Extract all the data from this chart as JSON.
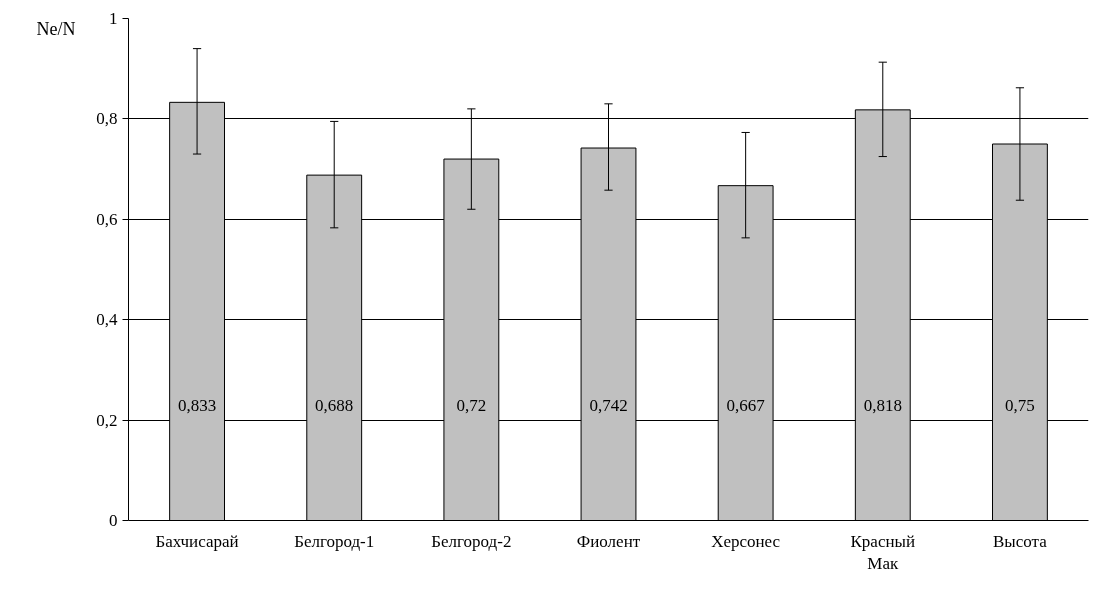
{
  "chart_data": {
    "type": "bar",
    "ylabel": "Ne/N",
    "categories": [
      "Бахчисарай",
      "Белгород-1",
      "Белгород-2",
      "Фиолент",
      "Херсонес",
      "Красный Мак",
      "Высота"
    ],
    "values": [
      0.833,
      0.688,
      0.72,
      0.742,
      0.667,
      0.818,
      0.75
    ],
    "value_labels": [
      "0,833",
      "0,688",
      "0,72",
      "0,742",
      "0,667",
      "0,818",
      "0,75"
    ],
    "errors": [
      [
        0.73,
        0.94
      ],
      [
        0.583,
        0.795
      ],
      [
        0.62,
        0.82
      ],
      [
        0.658,
        0.83
      ],
      [
        0.563,
        0.773
      ],
      [
        0.725,
        0.913
      ],
      [
        0.638,
        0.862
      ]
    ],
    "color": "#c0c0c0",
    "ylim": [
      0,
      1
    ],
    "yticks": [
      0,
      {
        "value": 0.2,
        "label": "0,2"
      },
      {
        "value": 0.4,
        "label": "0,4"
      },
      {
        "value": 0.6,
        "label": "0,6"
      },
      {
        "value": 0.8,
        "label": "0,8"
      },
      1
    ],
    "grid": "y"
  }
}
